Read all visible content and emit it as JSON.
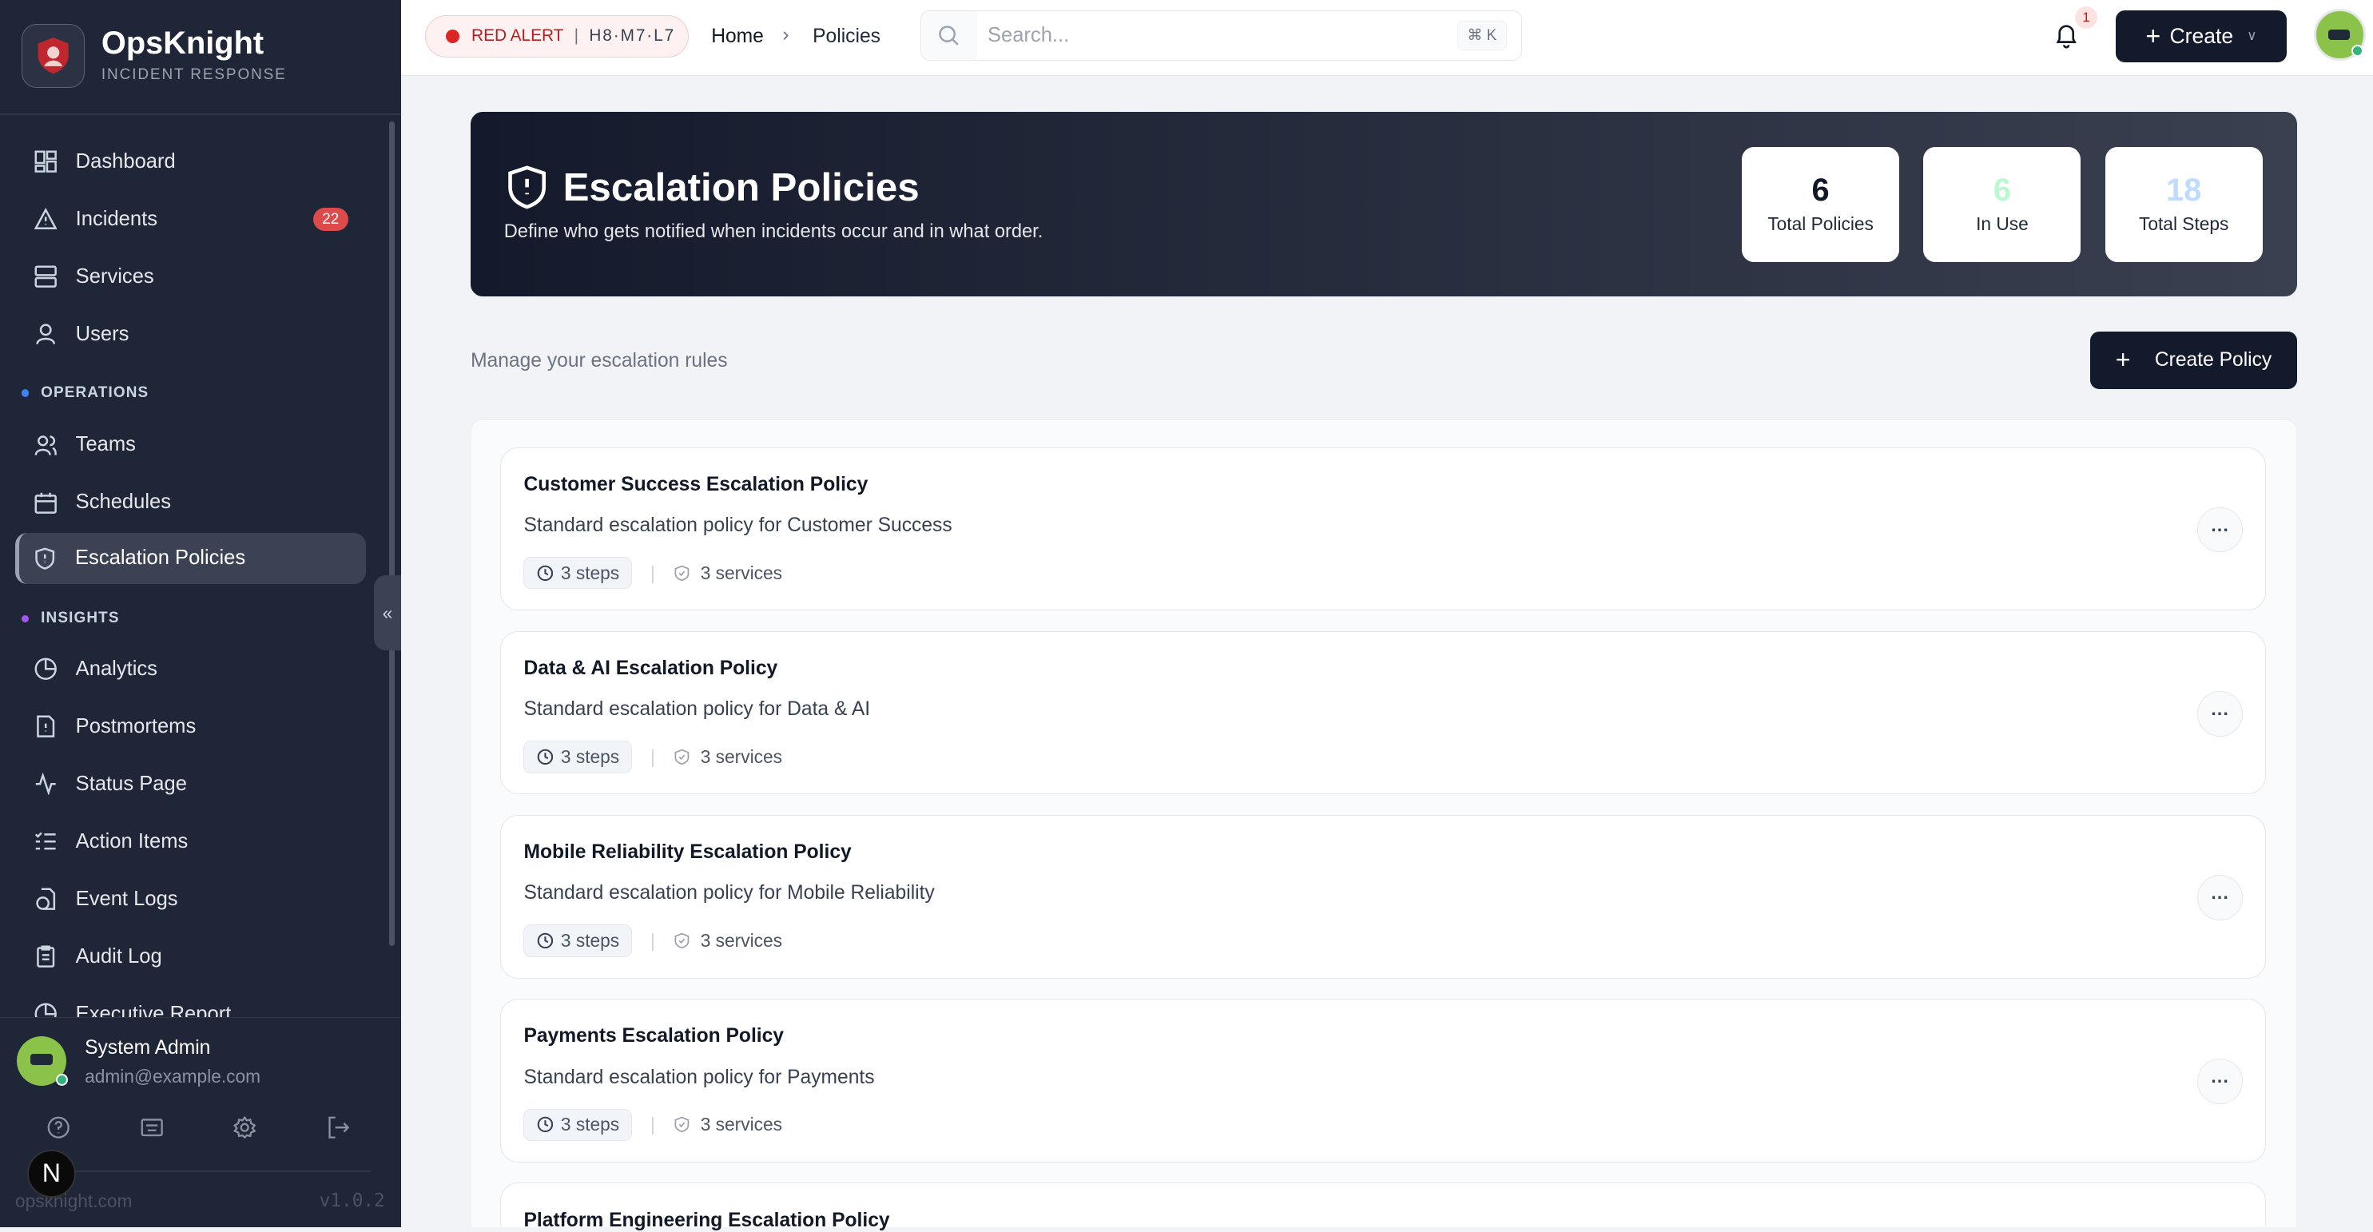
{
  "app": {
    "name": "OpsKnight",
    "subtitle": "INCIDENT RESPONSE"
  },
  "sidebar": {
    "main": [
      {
        "label": "Dashboard"
      },
      {
        "label": "Incidents",
        "badge": "22"
      },
      {
        "label": "Services"
      },
      {
        "label": "Users"
      }
    ],
    "operations_label": "OPERATIONS",
    "operations": [
      {
        "label": "Teams"
      },
      {
        "label": "Schedules"
      },
      {
        "label": "Escalation Policies",
        "active": true
      }
    ],
    "insights_label": "INSIGHTS",
    "insights": [
      {
        "label": "Analytics"
      },
      {
        "label": "Postmortems"
      },
      {
        "label": "Status Page"
      },
      {
        "label": "Action Items"
      },
      {
        "label": "Event Logs"
      },
      {
        "label": "Audit Log"
      },
      {
        "label": "Executive Report"
      }
    ],
    "user": {
      "name": "System Admin",
      "email": "admin@example.com"
    },
    "footer": {
      "site": "opsknight.com",
      "version": "v1.0.2"
    },
    "collapse": "«"
  },
  "topbar": {
    "alert": {
      "label": "RED ALERT",
      "sep": "|",
      "counts": "H8·M7·L7",
      "color": "#dc2626"
    },
    "breadcrumb": [
      "Home",
      "Policies"
    ],
    "search": {
      "placeholder": "Search...",
      "shortcut": "⌘ K"
    },
    "notifications": "1",
    "create_label": "Create"
  },
  "hero": {
    "title": "Escalation Policies",
    "subtitle": "Define who gets notified when incidents occur and in what order.",
    "stats": [
      {
        "value": "6",
        "label": "Total Policies",
        "color": "#111827"
      },
      {
        "value": "6",
        "label": "In Use",
        "color": "#bbf7d0"
      },
      {
        "value": "18",
        "label": "Total Steps",
        "color": "#bfdbfe"
      }
    ]
  },
  "toolbar": {
    "subtitle": "Manage your escalation rules",
    "create_policy": "Create Policy"
  },
  "policies": [
    {
      "name": "Customer Success Escalation Policy",
      "description": "Standard escalation policy for Customer Success",
      "steps": "3 steps",
      "services": "3 services"
    },
    {
      "name": "Data & AI Escalation Policy",
      "description": "Standard escalation policy for Data & AI",
      "steps": "3 steps",
      "services": "3 services"
    },
    {
      "name": "Mobile Reliability Escalation Policy",
      "description": "Standard escalation policy for Mobile Reliability",
      "steps": "3 steps",
      "services": "3 services"
    },
    {
      "name": "Payments Escalation Policy",
      "description": "Standard escalation policy for Payments",
      "steps": "3 steps",
      "services": "3 services"
    },
    {
      "name": "Platform Engineering Escalation Policy",
      "description": "",
      "steps": "",
      "services": ""
    }
  ],
  "dev_badge": "N"
}
